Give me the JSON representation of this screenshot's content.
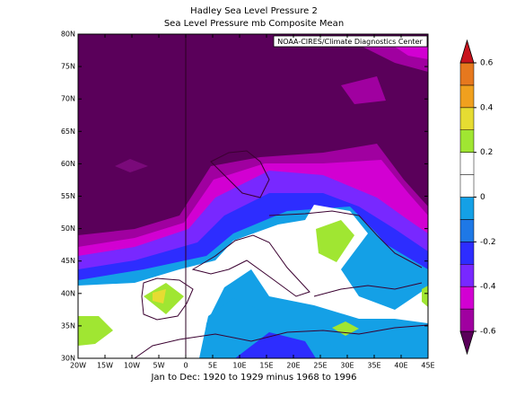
{
  "map": {
    "title": "Hadley Sea Level Pressure 2",
    "subtitle": "Sea Level Pressure mb Composite Mean",
    "credit": "NOAA-CIRES/Climate Diagnostics Center",
    "caption": "Jan to Dec: 1920 to 1929 minus 1968 to 1996",
    "lat_labels": [
      "30N",
      "35N",
      "40N",
      "45N",
      "50N",
      "55N",
      "60N",
      "65N",
      "70N",
      "75N",
      "80N"
    ],
    "lon_labels": [
      "20W",
      "15W",
      "10W",
      "5W",
      "0",
      "5E",
      "10E",
      "15E",
      "20E",
      "25E",
      "30E",
      "35E",
      "40E",
      "45E"
    ],
    "colorbar": {
      "ticks": [
        -0.6,
        -0.4,
        -0.2,
        0,
        0.2,
        0.4,
        0.6
      ],
      "colors": [
        "#5a005a",
        "#a000a0",
        "#d200d2",
        "#7828ff",
        "#2d2dff",
        "#1e78e6",
        "#14a0e6",
        "#ffffff",
        "#ffffff",
        "#a0e632",
        "#e6dc32",
        "#f0a01e",
        "#e6781e",
        "#c8141e"
      ]
    }
  }
}
